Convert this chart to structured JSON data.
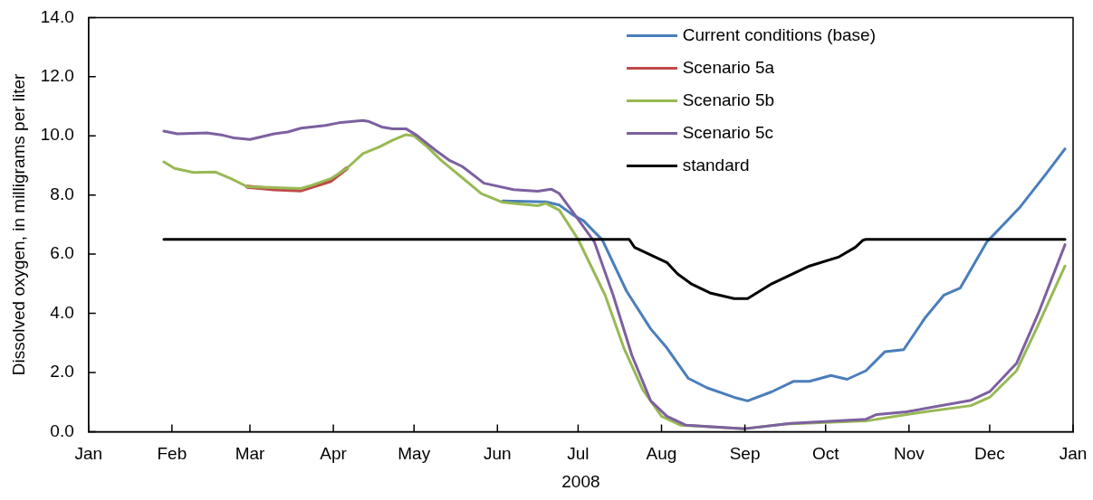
{
  "chart_data": {
    "type": "line",
    "xlabel": "2008",
    "ylabel": "Dissolved oxygen, in milligrams per liter",
    "xlim": [
      "2008-01-01",
      "2009-01-01"
    ],
    "xticks": [
      {
        "value": "2008-01-01",
        "label": "Jan"
      },
      {
        "value": "2008-02-01",
        "label": "Feb"
      },
      {
        "value": "2008-03-01",
        "label": "Mar"
      },
      {
        "value": "2008-04-01",
        "label": "Apr"
      },
      {
        "value": "2008-05-01",
        "label": "May"
      },
      {
        "value": "2008-06-01",
        "label": "Jun"
      },
      {
        "value": "2008-07-01",
        "label": "Jul"
      },
      {
        "value": "2008-08-01",
        "label": "Aug"
      },
      {
        "value": "2008-09-01",
        "label": "Sep"
      },
      {
        "value": "2008-10-01",
        "label": "Oct"
      },
      {
        "value": "2008-11-01",
        "label": "Nov"
      },
      {
        "value": "2008-12-01",
        "label": "Dec"
      },
      {
        "value": "2009-01-01",
        "label": "Jan"
      }
    ],
    "ylim": [
      0,
      14
    ],
    "yticks": [
      {
        "value": 0,
        "label": "0.0"
      },
      {
        "value": 2,
        "label": "2.0"
      },
      {
        "value": 4,
        "label": "4.0"
      },
      {
        "value": 6,
        "label": "6.0"
      },
      {
        "value": 8,
        "label": "8.0"
      },
      {
        "value": 10,
        "label": "10.0"
      },
      {
        "value": 12,
        "label": "12.0"
      },
      {
        "value": 14,
        "label": "14.0"
      }
    ],
    "grid": false,
    "legend": "top right",
    "marker": "none",
    "line_style": "solid",
    "series": [
      {
        "name": "Current conditions (base)",
        "color": "#4a7ebb",
        "x": [
          "2008-06-03",
          "2008-06-19",
          "2008-06-24",
          "2008-06-29",
          "2008-07-03",
          "2008-07-10",
          "2008-07-19",
          "2008-07-28",
          "2008-08-03",
          "2008-08-11",
          "2008-08-18",
          "2008-08-28",
          "2008-09-02",
          "2008-09-11",
          "2008-09-19",
          "2008-09-25",
          "2008-10-03",
          "2008-10-09",
          "2008-10-16",
          "2008-10-23",
          "2008-10-30",
          "2008-11-07",
          "2008-11-14",
          "2008-11-20",
          "2008-11-30",
          "2008-12-12",
          "2008-12-22",
          "2008-12-29"
        ],
        "values": [
          7.8,
          7.77,
          7.66,
          7.33,
          7.13,
          6.48,
          4.75,
          3.47,
          2.83,
          1.8,
          1.48,
          1.16,
          1.04,
          1.35,
          1.7,
          1.7,
          1.9,
          1.77,
          2.06,
          2.7,
          2.77,
          3.85,
          4.62,
          4.85,
          6.42,
          7.56,
          8.72,
          9.56
        ]
      },
      {
        "name": "Scenario 5a",
        "color": "#be4b48",
        "x": [
          "2008-02-29",
          "2008-03-10",
          "2008-03-20",
          "2008-03-24",
          "2008-03-31",
          "2008-04-06"
        ],
        "values": [
          8.28,
          8.2,
          8.16,
          8.28,
          8.48,
          8.9
        ]
      },
      {
        "name": "Scenario 5b",
        "color": "#98b954",
        "x": [
          "2008-01-29",
          "2008-02-02",
          "2008-02-09",
          "2008-02-17",
          "2008-02-23",
          "2008-02-29",
          "2008-03-10",
          "2008-03-20",
          "2008-03-24",
          "2008-03-31",
          "2008-04-06",
          "2008-04-12",
          "2008-04-18",
          "2008-04-23",
          "2008-04-28",
          "2008-05-01",
          "2008-05-06",
          "2008-05-11",
          "2008-05-17",
          "2008-05-26",
          "2008-06-03",
          "2008-06-16",
          "2008-06-19",
          "2008-06-24",
          "2008-07-01",
          "2008-07-11",
          "2008-07-18",
          "2008-07-25",
          "2008-08-01",
          "2008-08-08",
          "2008-09-01",
          "2008-09-16",
          "2008-10-16",
          "2008-10-31",
          "2008-11-24",
          "2008-12-01",
          "2008-12-11",
          "2008-12-19",
          "2008-12-29"
        ],
        "values": [
          9.12,
          8.9,
          8.76,
          8.78,
          8.55,
          8.28,
          8.25,
          8.22,
          8.33,
          8.55,
          8.9,
          9.4,
          9.62,
          9.85,
          10.04,
          10.0,
          9.62,
          9.18,
          8.73,
          8.05,
          7.75,
          7.64,
          7.72,
          7.49,
          6.5,
          4.62,
          2.83,
          1.42,
          0.52,
          0.22,
          0.1,
          0.26,
          0.36,
          0.58,
          0.88,
          1.16,
          2.06,
          3.6,
          5.6
        ]
      },
      {
        "name": "Scenario 5c",
        "color": "#7d60a0",
        "x": [
          "2008-01-29",
          "2008-02-03",
          "2008-02-14",
          "2008-02-20",
          "2008-02-24",
          "2008-03-01",
          "2008-03-10",
          "2008-03-15",
          "2008-03-20",
          "2008-03-29",
          "2008-04-03",
          "2008-04-12",
          "2008-04-14",
          "2008-04-19",
          "2008-04-23",
          "2008-04-28",
          "2008-05-02",
          "2008-05-09",
          "2008-05-14",
          "2008-05-19",
          "2008-05-27",
          "2008-06-07",
          "2008-06-16",
          "2008-06-21",
          "2008-06-24",
          "2008-06-29",
          "2008-07-07",
          "2008-07-14",
          "2008-07-21",
          "2008-07-28",
          "2008-08-03",
          "2008-08-10",
          "2008-09-01",
          "2008-09-18",
          "2008-10-16",
          "2008-10-20",
          "2008-10-31",
          "2008-11-24",
          "2008-12-01",
          "2008-12-11",
          "2008-12-19",
          "2008-12-29"
        ],
        "values": [
          10.16,
          10.07,
          10.1,
          10.02,
          9.93,
          9.88,
          10.07,
          10.13,
          10.26,
          10.35,
          10.44,
          10.52,
          10.49,
          10.3,
          10.24,
          10.24,
          10.02,
          9.51,
          9.18,
          8.96,
          8.4,
          8.18,
          8.13,
          8.2,
          8.05,
          7.43,
          6.42,
          4.62,
          2.58,
          1.04,
          0.52,
          0.22,
          0.1,
          0.28,
          0.42,
          0.58,
          0.67,
          1.06,
          1.35,
          2.31,
          3.98,
          6.32
        ]
      },
      {
        "name": "standard",
        "color": "#000000",
        "x": [
          "2008-01-29",
          "2008-07-20",
          "2008-07-22",
          "2008-08-03",
          "2008-08-07",
          "2008-08-12",
          "2008-08-19",
          "2008-08-28",
          "2008-09-02",
          "2008-09-11",
          "2008-09-25",
          "2008-10-06",
          "2008-10-12",
          "2008-10-15",
          "2008-10-16",
          "2008-12-29"
        ],
        "values": [
          6.5,
          6.5,
          6.23,
          5.72,
          5.33,
          5.0,
          4.69,
          4.5,
          4.5,
          5.0,
          5.6,
          5.91,
          6.23,
          6.48,
          6.5,
          6.5
        ]
      }
    ]
  }
}
